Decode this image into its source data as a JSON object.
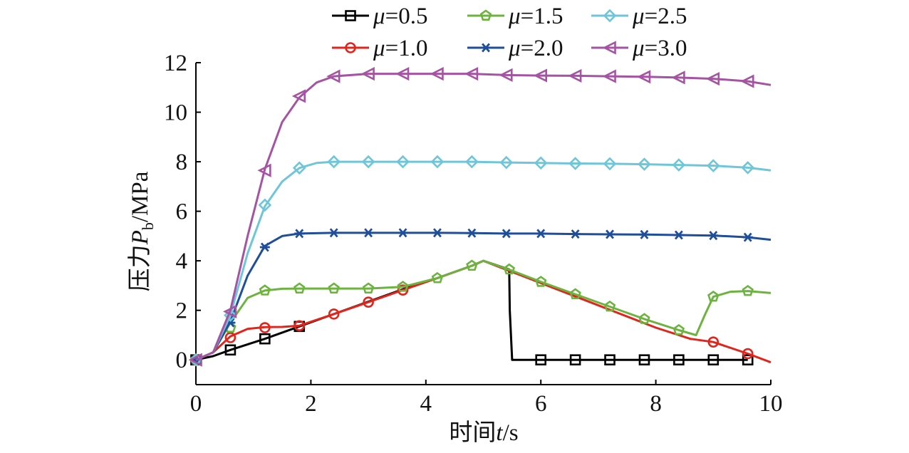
{
  "chart_data": {
    "type": "line",
    "xlabel_prefix": "时间",
    "xlabel_var": "t",
    "xlabel_unit": "/s",
    "ylabel_prefix": "压力",
    "ylabel_var": "P",
    "ylabel_sub": "b",
    "ylabel_unit": "/MPa",
    "xlim": [
      0,
      10
    ],
    "ylim": [
      -1,
      12
    ],
    "xticks": [
      0,
      2,
      4,
      6,
      8,
      10
    ],
    "yticks": [
      0,
      2,
      4,
      6,
      8,
      10,
      12
    ],
    "grid": false,
    "legend_position": "top",
    "series": [
      {
        "name": "μ=0.5",
        "mu_symbol": "μ",
        "mu_value": "=0.5",
        "color": "#000000",
        "marker": "square",
        "x": [
          0,
          0.3,
          0.6,
          1.2,
          1.8,
          2.4,
          3.0,
          3.6,
          4.2,
          4.8,
          5.0,
          5.45,
          5.46,
          5.5,
          6.0,
          6.6,
          7.2,
          7.8,
          8.4,
          9.0,
          9.6
        ],
        "y": [
          0,
          0.15,
          0.4,
          0.85,
          1.35,
          1.85,
          2.35,
          2.85,
          3.3,
          3.8,
          4.0,
          3.65,
          2.0,
          0,
          0,
          0,
          0,
          0,
          0,
          0,
          0
        ],
        "marker_x": [
          0,
          0.6,
          1.2,
          1.8,
          6.0,
          6.6,
          7.2,
          7.8,
          8.4,
          9.0,
          9.6
        ],
        "marker_y": [
          0,
          0.4,
          0.85,
          1.35,
          0,
          0,
          0,
          0,
          0,
          0,
          0
        ]
      },
      {
        "name": "μ=1.0",
        "mu_symbol": "μ",
        "mu_value": "=1.0",
        "color": "#e0251c",
        "marker": "circle",
        "x": [
          0,
          0.3,
          0.6,
          0.9,
          1.2,
          1.5,
          1.8,
          2.4,
          3.0,
          3.6,
          4.2,
          4.8,
          5.0,
          6.0,
          7.0,
          8.0,
          8.6,
          9.0,
          9.6,
          10.0
        ],
        "y": [
          0,
          0.3,
          0.95,
          1.25,
          1.32,
          1.33,
          1.38,
          1.85,
          2.33,
          2.82,
          3.3,
          3.8,
          4.0,
          3.1,
          2.2,
          1.3,
          0.85,
          0.72,
          0.25,
          -0.1
        ],
        "marker_x": [
          0,
          0.6,
          1.2,
          1.8,
          2.4,
          3.0,
          3.6,
          9.0,
          9.6
        ],
        "marker_y": [
          0,
          0.9,
          1.3,
          1.38,
          1.85,
          2.33,
          2.82,
          0.72,
          0.25
        ]
      },
      {
        "name": "μ=1.5",
        "mu_symbol": "μ",
        "mu_value": "=1.5",
        "color": "#6db33f",
        "marker": "pentagon",
        "x": [
          0,
          0.3,
          0.6,
          0.9,
          1.2,
          1.5,
          1.8,
          2.4,
          3.0,
          3.6,
          4.2,
          4.8,
          5.0,
          5.5,
          6.0,
          6.6,
          7.2,
          7.8,
          8.4,
          8.7,
          8.85,
          9.0,
          9.3,
          9.6,
          10.0
        ],
        "y": [
          0,
          0.3,
          1.5,
          2.5,
          2.8,
          2.87,
          2.88,
          2.88,
          2.88,
          2.95,
          3.3,
          3.8,
          4.0,
          3.6,
          3.15,
          2.65,
          2.15,
          1.65,
          1.2,
          1.0,
          1.8,
          2.55,
          2.75,
          2.78,
          2.7
        ],
        "marker_x": [
          0,
          0.6,
          1.2,
          1.8,
          2.4,
          3.0,
          3.6,
          4.2,
          4.8,
          5.45,
          6.0,
          6.6,
          7.2,
          7.8,
          8.4,
          9.0,
          9.6
        ],
        "marker_y": [
          0,
          1.3,
          2.8,
          2.88,
          2.88,
          2.88,
          2.95,
          3.3,
          3.8,
          3.65,
          3.15,
          2.65,
          2.15,
          1.65,
          1.2,
          2.55,
          2.78
        ]
      },
      {
        "name": "μ=2.0",
        "mu_symbol": "μ",
        "mu_value": "=2.0",
        "color": "#1f4e9a",
        "marker": "star",
        "x": [
          0,
          0.3,
          0.6,
          0.9,
          1.2,
          1.5,
          1.8,
          2.4,
          3.0,
          3.6,
          4.2,
          4.8,
          5.4,
          6.0,
          6.6,
          7.2,
          7.8,
          8.4,
          9.0,
          9.6,
          10.0
        ],
        "y": [
          0,
          0.3,
          1.55,
          3.4,
          4.6,
          5.0,
          5.1,
          5.13,
          5.13,
          5.13,
          5.13,
          5.12,
          5.1,
          5.1,
          5.08,
          5.07,
          5.06,
          5.04,
          5.02,
          4.95,
          4.85
        ],
        "marker_x": [
          0,
          0.6,
          1.2,
          1.8,
          2.4,
          3.0,
          3.6,
          4.2,
          4.8,
          5.4,
          6.0,
          6.6,
          7.2,
          7.8,
          8.4,
          9.0,
          9.6
        ],
        "marker_y": [
          0,
          1.5,
          4.55,
          5.1,
          5.13,
          5.13,
          5.13,
          5.13,
          5.12,
          5.1,
          5.1,
          5.08,
          5.07,
          5.06,
          5.04,
          5.02,
          4.95
        ]
      },
      {
        "name": "μ=2.5",
        "mu_symbol": "μ",
        "mu_value": "=2.5",
        "color": "#6ec6d8",
        "marker": "diamond",
        "x": [
          0,
          0.3,
          0.6,
          0.9,
          1.2,
          1.5,
          1.8,
          2.1,
          2.4,
          3.0,
          3.6,
          4.2,
          4.8,
          5.4,
          6.0,
          6.6,
          7.2,
          7.8,
          8.4,
          9.0,
          9.6,
          10.0
        ],
        "y": [
          0,
          0.3,
          1.8,
          4.3,
          6.2,
          7.2,
          7.75,
          7.95,
          8.0,
          8.0,
          8.0,
          8.0,
          8.0,
          7.97,
          7.95,
          7.93,
          7.92,
          7.9,
          7.87,
          7.84,
          7.76,
          7.65
        ],
        "marker_x": [
          0,
          0.6,
          1.2,
          1.8,
          2.4,
          3.0,
          3.6,
          4.2,
          4.8,
          5.4,
          6.0,
          6.6,
          7.2,
          7.8,
          8.4,
          9.0,
          9.6
        ],
        "marker_y": [
          0,
          1.8,
          6.25,
          7.75,
          8.0,
          8.0,
          8.0,
          8.0,
          8.0,
          7.97,
          7.95,
          7.93,
          7.92,
          7.9,
          7.87,
          7.84,
          7.76
        ]
      },
      {
        "name": "μ=3.0",
        "mu_symbol": "μ",
        "mu_value": "=3.0",
        "color": "#a553a3",
        "marker": "triangle-left",
        "x": [
          0,
          0.3,
          0.6,
          0.9,
          1.2,
          1.5,
          1.8,
          2.1,
          2.4,
          3.0,
          3.6,
          4.2,
          4.8,
          5.4,
          6.0,
          6.6,
          7.2,
          7.8,
          8.4,
          9.0,
          9.6,
          10.0
        ],
        "y": [
          0,
          0.3,
          2.0,
          5.0,
          7.7,
          9.6,
          10.6,
          11.2,
          11.45,
          11.55,
          11.55,
          11.55,
          11.55,
          11.5,
          11.48,
          11.47,
          11.45,
          11.43,
          11.4,
          11.35,
          11.25,
          11.1
        ],
        "marker_x": [
          0,
          0.6,
          1.2,
          1.8,
          2.4,
          3.0,
          3.6,
          4.2,
          4.8,
          5.4,
          6.0,
          6.6,
          7.2,
          7.8,
          8.4,
          9.0,
          9.6
        ],
        "marker_y": [
          0,
          1.95,
          7.65,
          10.65,
          11.45,
          11.55,
          11.55,
          11.55,
          11.55,
          11.5,
          11.48,
          11.47,
          11.45,
          11.43,
          11.4,
          11.35,
          11.25
        ]
      }
    ]
  }
}
